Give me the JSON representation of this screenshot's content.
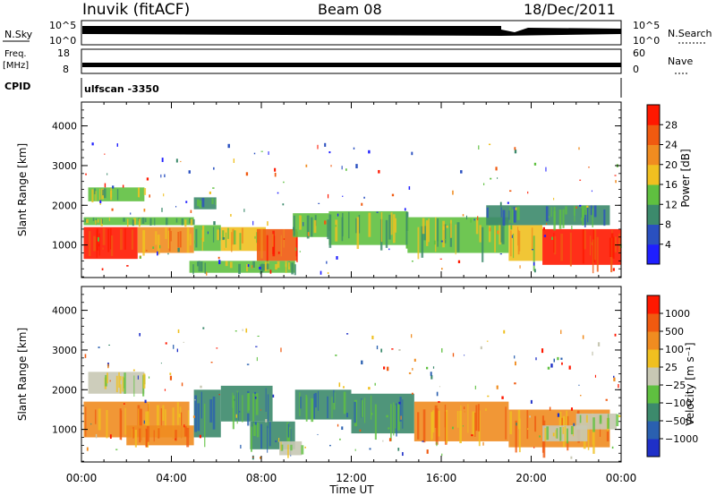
{
  "header": {
    "station": "Inuvik (fitACF)",
    "beam": "Beam 08",
    "date": "18/Dec/2011"
  },
  "strip_labels": {
    "nsky": "N.Sky",
    "nsky_top": "10^5",
    "nsky_bottom": "10^0",
    "nsearch": "N.Search",
    "nsearch_top": "10^5",
    "nsearch_bottom": "10^0",
    "freq_line1": "Freq.",
    "freq_line2": "[MHz]",
    "freq_top": "18",
    "freq_bottom": "8",
    "nave": "Nave",
    "nave_top": "60",
    "nave_bottom": "0",
    "cpid": "CPID",
    "cpid_value": "ulfscan -3350"
  },
  "colors": {
    "power": [
      "#1f1fff",
      "#2a50c0",
      "#3c8a6c",
      "#5fc040",
      "#f0c020",
      "#f08c20",
      "#f05a10",
      "#ff1800"
    ],
    "velocity": [
      "#1f30c8",
      "#2a60b0",
      "#3c8a6c",
      "#5fc040",
      "#c8c8b4",
      "#f0c020",
      "#f08c20",
      "#f05a10",
      "#ff1800"
    ]
  },
  "chart_data": [
    {
      "type": "heatmap",
      "quantity": "power",
      "ylabel": "Slant Range [km]",
      "xlabel": "",
      "ylim": [
        180,
        4600
      ],
      "yticks": [
        "1000",
        "2000",
        "3000",
        "4000"
      ],
      "colorbar_label": "Power [dB]",
      "colorbar_ticks": [
        "4",
        "8",
        "12",
        "16",
        "20",
        "24",
        "28"
      ],
      "bands": [
        {
          "x0": 0.1,
          "x1": 2.5,
          "r0": 650,
          "r1": 1450,
          "level": 7
        },
        {
          "x0": 0.1,
          "x1": 5.0,
          "r0": 1500,
          "r1": 1700,
          "level": 3
        },
        {
          "x0": 0.3,
          "x1": 2.8,
          "r0": 2100,
          "r1": 2450,
          "level": 3
        },
        {
          "x0": 5.0,
          "x1": 6.0,
          "r0": 1900,
          "r1": 2200,
          "level": 2
        },
        {
          "x0": 2.5,
          "x1": 5.0,
          "r0": 800,
          "r1": 1450,
          "level": 5
        },
        {
          "x0": 5.0,
          "x1": 6.2,
          "r0": 850,
          "r1": 1500,
          "level": 3
        },
        {
          "x0": 6.2,
          "x1": 8.2,
          "r0": 850,
          "r1": 1450,
          "level": 4
        },
        {
          "x0": 7.8,
          "x1": 9.6,
          "r0": 600,
          "r1": 1400,
          "level": 6
        },
        {
          "x0": 9.4,
          "x1": 11.0,
          "r0": 1200,
          "r1": 1800,
          "level": 3
        },
        {
          "x0": 11.0,
          "x1": 14.5,
          "r0": 1000,
          "r1": 1850,
          "level": 3
        },
        {
          "x0": 14.5,
          "x1": 19.0,
          "r0": 800,
          "r1": 1700,
          "level": 3
        },
        {
          "x0": 19.0,
          "x1": 20.5,
          "r0": 600,
          "r1": 1500,
          "level": 4
        },
        {
          "x0": 20.5,
          "x1": 24.0,
          "r0": 500,
          "r1": 1400,
          "level": 7
        },
        {
          "x0": 4.8,
          "x1": 9.5,
          "r0": 300,
          "r1": 600,
          "level": 3
        },
        {
          "x0": 18.0,
          "x1": 23.5,
          "r0": 1500,
          "r1": 2000,
          "level": 2
        }
      ]
    },
    {
      "type": "heatmap",
      "quantity": "velocity",
      "ylabel": "Slant Range [km]",
      "xlabel": "Time UT",
      "ylim": [
        180,
        4600
      ],
      "yticks": [
        "1000",
        "2000",
        "3000",
        "4000"
      ],
      "xticks": [
        "00:00",
        "04:00",
        "08:00",
        "12:00",
        "16:00",
        "20:00",
        "00:00"
      ],
      "xlim": [
        0,
        24
      ],
      "colorbar_label": "Velocity [m s⁻¹]",
      "colorbar_ticks": [
        "1000",
        "500",
        "100",
        "25",
        "−25",
        "−100",
        "−500",
        "−1000"
      ],
      "bands": [
        {
          "x0": 0.1,
          "x1": 4.8,
          "r0": 800,
          "r1": 1700,
          "level": 6
        },
        {
          "x0": 0.3,
          "x1": 2.8,
          "r0": 1900,
          "r1": 2450,
          "level": 4
        },
        {
          "x0": 2.0,
          "x1": 5.0,
          "r0": 600,
          "r1": 1100,
          "level": 6
        },
        {
          "x0": 5.0,
          "x1": 6.2,
          "r0": 800,
          "r1": 2000,
          "level": 2
        },
        {
          "x0": 6.2,
          "x1": 8.5,
          "r0": 1200,
          "r1": 2100,
          "level": 2
        },
        {
          "x0": 7.5,
          "x1": 9.5,
          "r0": 500,
          "r1": 1200,
          "level": 2
        },
        {
          "x0": 8.8,
          "x1": 9.8,
          "r0": 350,
          "r1": 700,
          "level": 4
        },
        {
          "x0": 9.5,
          "x1": 12.0,
          "r0": 1250,
          "r1": 2000,
          "level": 2
        },
        {
          "x0": 12.0,
          "x1": 14.8,
          "r0": 900,
          "r1": 1900,
          "level": 2
        },
        {
          "x0": 14.8,
          "x1": 19.0,
          "r0": 700,
          "r1": 1700,
          "level": 6
        },
        {
          "x0": 19.0,
          "x1": 23.5,
          "r0": 550,
          "r1": 1500,
          "level": 6
        },
        {
          "x0": 20.5,
          "x1": 22.5,
          "r0": 700,
          "r1": 1100,
          "level": 4
        },
        {
          "x0": 22.0,
          "x1": 23.8,
          "r0": 1000,
          "r1": 1400,
          "level": 4
        }
      ]
    }
  ]
}
